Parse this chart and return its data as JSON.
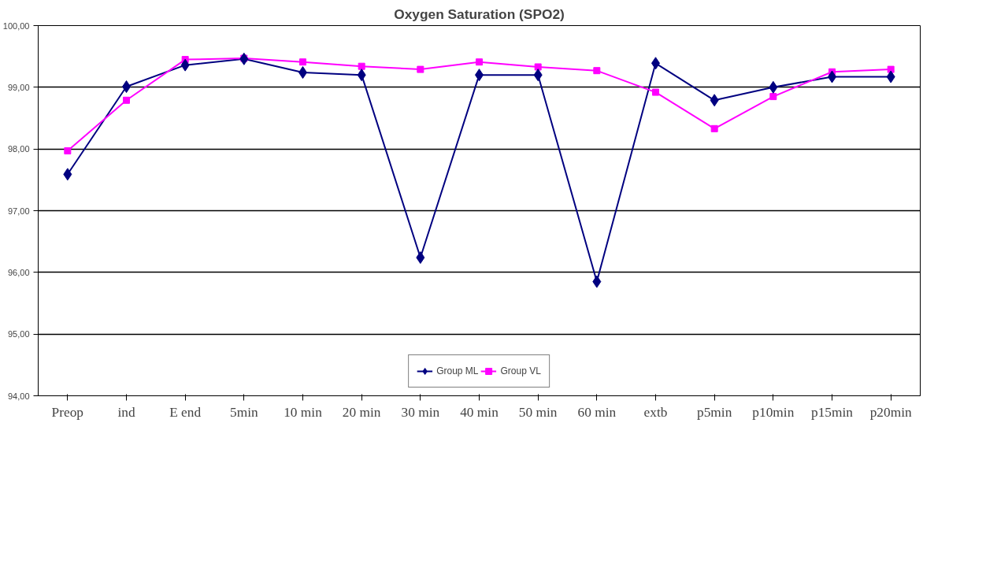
{
  "chart_data": {
    "type": "line",
    "title": "Oxygen Saturation (SPO2)",
    "categories": [
      "Preop",
      "ind",
      "E end",
      "5min",
      "10 min",
      "20 min",
      "30 min",
      "40 min",
      "50 min",
      "60 min",
      "extb",
      "p5min",
      "p10min",
      "p15min",
      "p20min"
    ],
    "series": [
      {
        "name": "Group ML",
        "color": "#000080",
        "marker": "diamond",
        "values": [
          97.59,
          99.01,
          99.36,
          99.46,
          99.24,
          99.2,
          96.24,
          99.2,
          99.2,
          95.85,
          99.39,
          98.79,
          99.0,
          99.17,
          99.17
        ]
      },
      {
        "name": "Group VL",
        "color": "#ff00ff",
        "marker": "square",
        "values": [
          97.97,
          98.79,
          99.45,
          99.47,
          99.41,
          99.34,
          99.29,
          99.41,
          99.33,
          99.27,
          98.92,
          98.33,
          98.85,
          99.25,
          99.29
        ]
      }
    ],
    "ylim": [
      94,
      100
    ],
    "yticks": [
      {
        "value": 94,
        "label": "94,00"
      },
      {
        "value": 95,
        "label": "95,00"
      },
      {
        "value": 96,
        "label": "96,00"
      },
      {
        "value": 97,
        "label": "97,00"
      },
      {
        "value": 98,
        "label": "98,00"
      },
      {
        "value": 99,
        "label": "99,00"
      },
      {
        "value": 100,
        "label": "100,00"
      }
    ],
    "grid": "y",
    "legend": "bottom",
    "line_style": "solid"
  }
}
